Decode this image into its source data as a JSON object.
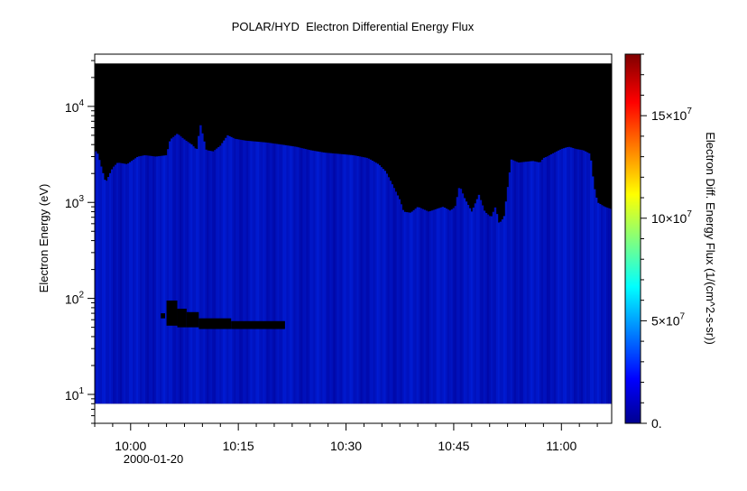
{
  "chart_data": {
    "type": "heatmap",
    "title": "POLAR/HYD  Electron Differential Energy Flux",
    "ylabel": "Electron Energy (eV)",
    "yscale": "log",
    "ylim": [
      5,
      35000
    ],
    "y_ticks": [
      {
        "value": 10,
        "base": "10",
        "exp": "1"
      },
      {
        "value": 100,
        "base": "10",
        "exp": "2"
      },
      {
        "value": 1000,
        "base": "10",
        "exp": "3"
      },
      {
        "value": 10000,
        "base": "10",
        "exp": "4"
      }
    ],
    "xlim_minutes": [
      595,
      667
    ],
    "x_ticks": [
      {
        "minute": 600,
        "label": "10:00"
      },
      {
        "minute": 615,
        "label": "10:15"
      },
      {
        "minute": 630,
        "label": "10:30"
      },
      {
        "minute": 645,
        "label": "10:45"
      },
      {
        "minute": 660,
        "label": "11:00"
      }
    ],
    "date_label": "2000-01-20",
    "data_energy_range": [
      8,
      28000
    ],
    "colorbar": {
      "label": "Electron Diff. Energy Flux (1/(cm^2-s-sr))",
      "range": [
        0,
        180000000
      ],
      "ticks": [
        {
          "value": 0,
          "label": "0."
        },
        {
          "value": 50000000,
          "label": "5×10",
          "exp": "7"
        },
        {
          "value": 100000000,
          "label": "10×10",
          "exp": "7"
        },
        {
          "value": 150000000,
          "label": "15×10",
          "exp": "7"
        }
      ]
    },
    "upper_cutoff_profile": {
      "minute": [
        595,
        595.4,
        596.5,
        597.5,
        598.2,
        599.5,
        601,
        602,
        603.5,
        605,
        605.5,
        606.5,
        607.5,
        608.5,
        609.2,
        609.7,
        610.5,
        611.5,
        612.5,
        613.5,
        614.5,
        616,
        617.5,
        619,
        621,
        623,
        625,
        627,
        629,
        631,
        633,
        634.5,
        635.5,
        636.5,
        637.5,
        638,
        639,
        640,
        641.5,
        642.5,
        643.5,
        644.5,
        645.2,
        645.8,
        646.5,
        647.5,
        648.5,
        649.3,
        650.2,
        650.8,
        651.3,
        652,
        653,
        654,
        656,
        657,
        657.5,
        658,
        659,
        660,
        661,
        662,
        663,
        664,
        664.5,
        665,
        666,
        667
      ],
      "top_eV": [
        3500,
        3200,
        1600,
        2300,
        2600,
        2500,
        3000,
        3100,
        3000,
        3100,
        4500,
        5200,
        4500,
        4000,
        3500,
        6500,
        3500,
        3400,
        3900,
        5000,
        4600,
        4400,
        4300,
        4200,
        4000,
        3800,
        3500,
        3300,
        3200,
        3100,
        2900,
        2500,
        2100,
        1500,
        1050,
        800,
        780,
        900,
        800,
        850,
        900,
        820,
        900,
        1500,
        1100,
        800,
        1200,
        800,
        700,
        900,
        600,
        700,
        2800,
        2600,
        2700,
        2600,
        2900,
        3000,
        3300,
        3600,
        3800,
        3600,
        3500,
        3200,
        1500,
        1000,
        900,
        850
      ]
    },
    "gaps": [
      {
        "start_minute": 605.0,
        "end_minute": 606.5,
        "low_eV": 52,
        "high_eV": 95
      },
      {
        "start_minute": 606.5,
        "end_minute": 607.8,
        "low_eV": 50,
        "high_eV": 78
      },
      {
        "start_minute": 607.8,
        "end_minute": 609.5,
        "low_eV": 50,
        "high_eV": 72
      },
      {
        "start_minute": 609.5,
        "end_minute": 614.0,
        "low_eV": 48,
        "high_eV": 62
      },
      {
        "start_minute": 614.0,
        "end_minute": 621.5,
        "low_eV": 48,
        "high_eV": 58
      },
      {
        "start_minute": 604.2,
        "end_minute": 604.8,
        "low_eV": 62,
        "high_eV": 70
      }
    ],
    "grid": false,
    "colormap": "jet"
  }
}
